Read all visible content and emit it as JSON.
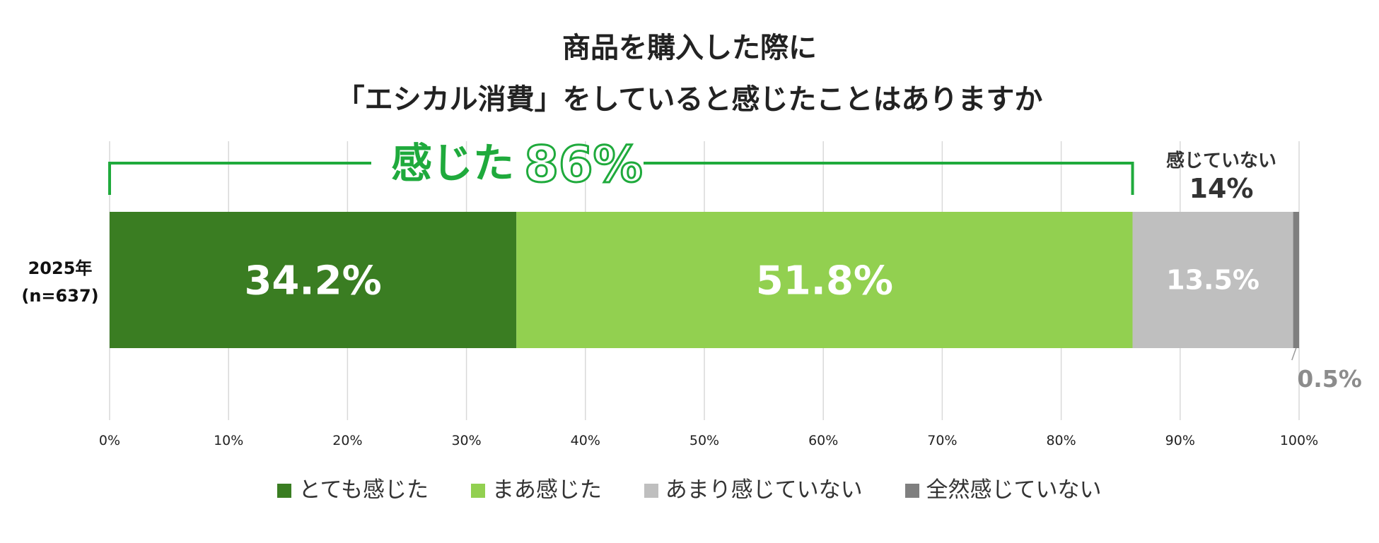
{
  "title_lines": [
    "商品を購入した際に",
    "「エシカル消費」をしていると感じたことはありますか"
  ],
  "colors": {
    "very_felt": "#3a7d22",
    "somewhat_felt": "#92d050",
    "not_really": "#bfbfbf",
    "not_at_all": "#7f7f7f",
    "accent_green": "#1faa3c",
    "grid": "#d9d9d9"
  },
  "chart_data": {
    "type": "bar",
    "orientation": "horizontal",
    "stacked": true,
    "title": "商品を購入した際に「エシカル消費」をしていると感じたことはありますか",
    "categories": [
      "2025年 (n=637)"
    ],
    "category_label_lines": [
      "2025年",
      "(n=637)"
    ],
    "series": [
      {
        "name": "とても感じた",
        "values": [
          34.2
        ],
        "label": "34.2%"
      },
      {
        "name": "まあ感じた",
        "values": [
          51.8
        ],
        "label": "51.8%"
      },
      {
        "name": "あまり感じていない",
        "values": [
          13.5
        ],
        "label": "13.5%"
      },
      {
        "name": "全然感じていない",
        "values": [
          0.5
        ],
        "label": "0.5%"
      }
    ],
    "xlim": [
      0,
      100
    ],
    "x_ticks": [
      "0%",
      "10%",
      "20%",
      "30%",
      "40%",
      "50%",
      "60%",
      "70%",
      "80%",
      "90%",
      "100%"
    ],
    "grid": true,
    "legend_position": "bottom",
    "annotations": {
      "felt_prefix": "感じた",
      "felt_total": "86%",
      "felt_range": [
        0,
        86
      ],
      "not_felt_label": "感じていない",
      "not_felt_total": "14%"
    }
  }
}
